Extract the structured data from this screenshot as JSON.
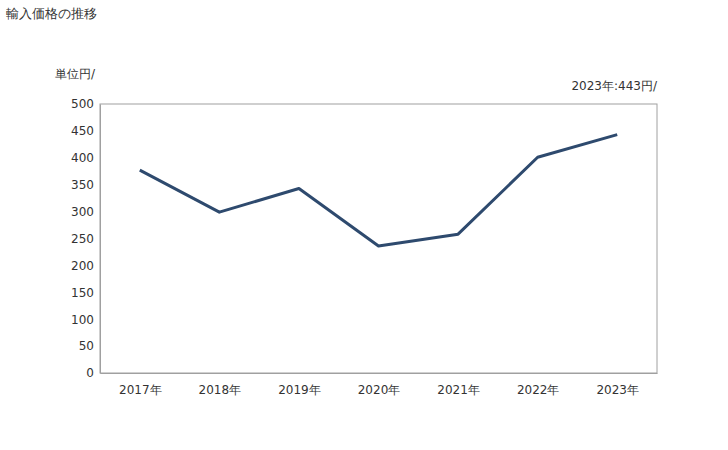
{
  "chart_data": {
    "type": "line",
    "title": "輸入価格の推移",
    "y_label": "単位円/",
    "annotation": "2023年:443円/",
    "categories": [
      "2017年",
      "2018年",
      "2019年",
      "2020年",
      "2021年",
      "2022年",
      "2023年"
    ],
    "values": [
      377,
      299,
      343,
      236,
      258,
      401,
      443
    ],
    "color": "#2e4a6e",
    "ylim": [
      0,
      500
    ],
    "yticks": [
      0,
      50,
      100,
      150,
      200,
      250,
      300,
      350,
      400,
      450,
      500
    ],
    "grid": false
  }
}
